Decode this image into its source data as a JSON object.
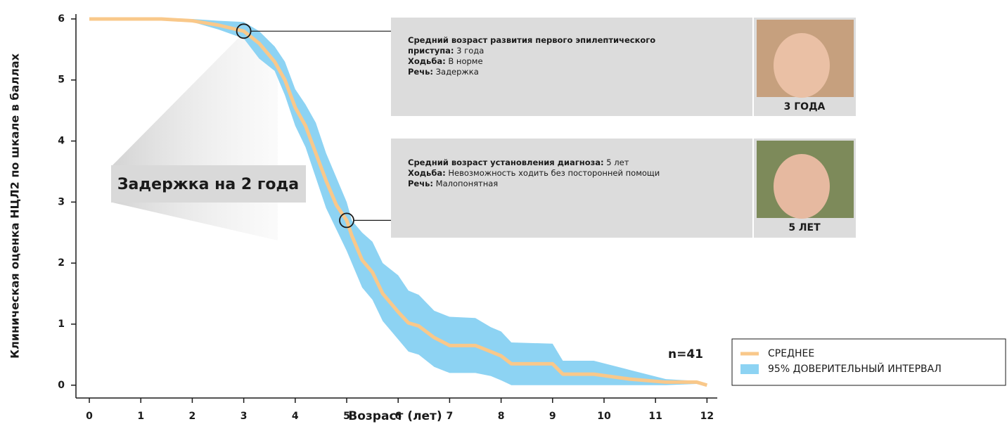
{
  "chart_data": {
    "type": "line",
    "xlabel": "Возраст (лет)",
    "ylabel": "Клиническая оценка НЦЛ2 по шкале в баллах",
    "xlim": [
      -0.26,
      12.2
    ],
    "ylim": [
      -0.21,
      6.08
    ],
    "xticks": [
      0,
      1,
      2,
      3,
      4,
      5,
      6,
      7,
      8,
      9,
      10,
      11,
      12
    ],
    "yticks": [
      0,
      1,
      2,
      3,
      4,
      5,
      6
    ],
    "x": [
      0,
      1.4,
      2,
      2.5,
      3,
      3.3,
      3.6,
      3.8,
      4,
      4.2,
      4.4,
      4.6,
      4.8,
      5,
      5.1,
      5.3,
      5.5,
      5.7,
      6,
      6.2,
      6.4,
      6.7,
      7,
      7.5,
      7.8,
      8,
      8.2,
      9,
      9.2,
      9.8,
      10.5,
      11.2,
      11.8,
      12
    ],
    "series": [
      {
        "name": "СРЕДНЕЕ",
        "color": "#f9c88a",
        "values": [
          6,
          6,
          5.97,
          5.9,
          5.8,
          5.6,
          5.3,
          5.0,
          4.55,
          4.25,
          3.8,
          3.35,
          2.95,
          2.7,
          2.45,
          2.05,
          1.85,
          1.5,
          1.2,
          1.02,
          0.97,
          0.78,
          0.65,
          0.65,
          0.55,
          0.48,
          0.35,
          0.35,
          0.18,
          0.18,
          0.1,
          0.05,
          0.05,
          0
        ]
      },
      {
        "name": "95% ДОВЕРИТЕЛЬНЫЙ ИНТЕРВАЛ",
        "color": "#8dd3f3",
        "upper": [
          6,
          6,
          6,
          5.97,
          5.95,
          5.8,
          5.55,
          5.3,
          4.85,
          4.6,
          4.3,
          3.8,
          3.4,
          3.0,
          2.7,
          2.5,
          2.35,
          2.0,
          1.8,
          1.55,
          1.48,
          1.22,
          1.12,
          1.1,
          0.95,
          0.88,
          0.7,
          0.68,
          0.4,
          0.4,
          0.25,
          0.1,
          0.07,
          0
        ],
        "lower": [
          6,
          6,
          5.95,
          5.83,
          5.68,
          5.35,
          5.15,
          4.75,
          4.25,
          3.9,
          3.4,
          2.9,
          2.55,
          2.2,
          2.0,
          1.6,
          1.4,
          1.05,
          0.75,
          0.55,
          0.5,
          0.3,
          0.2,
          0.2,
          0.15,
          0.08,
          0,
          0,
          0,
          0,
          0,
          0,
          0.02,
          0
        ]
      }
    ],
    "highlight_points": [
      {
        "x": 3,
        "y": 5.8
      },
      {
        "x": 5,
        "y": 2.7
      }
    ],
    "annotations": [
      {
        "lines": [
          [
            {
              "bold": "Средний возраст развития первого эпилептического"
            }
          ],
          [
            {
              "bold": "приступа:",
              "text": " 3 года"
            }
          ],
          [
            {
              "bold": "Ходьба:",
              "text": " В норме"
            }
          ],
          [
            {
              "bold": "Речь:",
              "text": " Задержка"
            }
          ]
        ],
        "caption": "3 ГОДА"
      },
      {
        "lines": [
          [
            {
              "bold": "Средний возраст установления диагноза:",
              "text": " 5 лет"
            }
          ],
          [
            {
              "bold": "Ходьба:",
              "text": " Невозможность ходить без посторонней помощи"
            }
          ],
          [
            {
              "bold": "Речь:",
              "text": " Малопонятная"
            }
          ]
        ],
        "caption": "5 ЛЕТ"
      }
    ],
    "delay_label": "Задержка на 2 года",
    "n_label": "n=41",
    "legend": "bottom-right"
  }
}
